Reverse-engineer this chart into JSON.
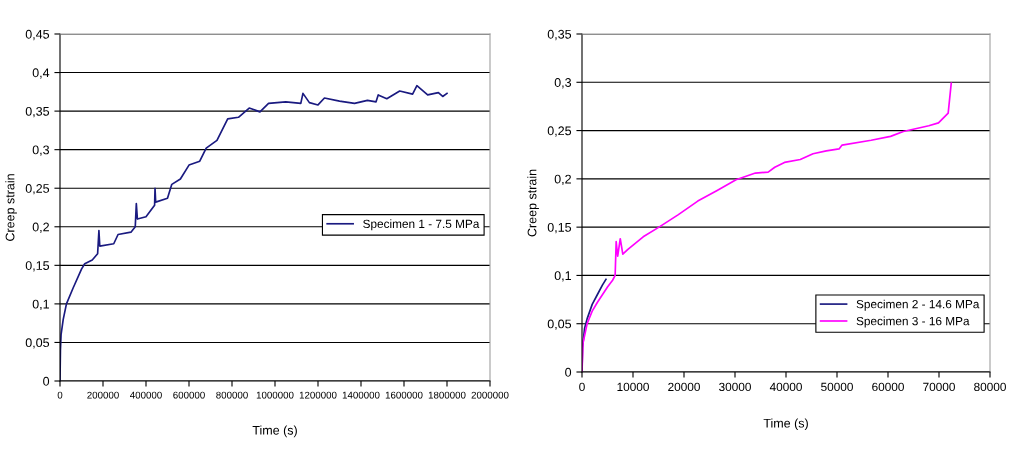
{
  "chart_data": [
    {
      "type": "line",
      "xlabel": "Time (s)",
      "ylabel": "Creep strain",
      "grid": "y",
      "legend": "right",
      "xlim": [
        0,
        2000000
      ],
      "xticks": [
        0,
        200000,
        400000,
        600000,
        800000,
        1000000,
        1200000,
        1400000,
        1600000,
        1800000,
        2000000
      ],
      "ylim": [
        0,
        0.45
      ],
      "yticks": [
        0,
        {
          "value": 0.05,
          "label": "0,05"
        },
        {
          "value": 0.1,
          "label": "0,1"
        },
        {
          "value": 0.15,
          "label": "0,15"
        },
        {
          "value": 0.2,
          "label": "0,2"
        },
        {
          "value": 0.25,
          "label": "0,25"
        },
        {
          "value": 0.3,
          "label": "0,3"
        },
        {
          "value": 0.35,
          "label": "0,35"
        },
        {
          "value": 0.4,
          "label": "0,4"
        },
        {
          "value": 0.45,
          "label": "0,45"
        }
      ],
      "series": [
        {
          "name": "Specimen 1 - 7.5 MPa",
          "color": "#1a1a80",
          "x": [
            0,
            2000,
            5000,
            15000,
            30000,
            60000,
            100000,
            115000,
            150000,
            175000,
            181000,
            185000,
            250000,
            270000,
            330000,
            350000,
            355000,
            360000,
            400000,
            440000,
            442000,
            445000,
            500000,
            520000,
            560000,
            600000,
            650000,
            680000,
            730000,
            780000,
            830000,
            880000,
            930000,
            970000,
            1050000,
            1120000,
            1130000,
            1160000,
            1200000,
            1230000,
            1300000,
            1370000,
            1430000,
            1470000,
            1480000,
            1520000,
            1580000,
            1640000,
            1660000,
            1710000,
            1760000,
            1780000,
            1800000
          ],
          "values": [
            0,
            0.04,
            0.06,
            0.08,
            0.1,
            0.12,
            0.145,
            0.152,
            0.157,
            0.165,
            0.195,
            0.175,
            0.178,
            0.19,
            0.193,
            0.2,
            0.23,
            0.21,
            0.213,
            0.228,
            0.25,
            0.232,
            0.237,
            0.255,
            0.262,
            0.28,
            0.285,
            0.302,
            0.312,
            0.34,
            0.342,
            0.354,
            0.349,
            0.36,
            0.362,
            0.36,
            0.373,
            0.361,
            0.358,
            0.367,
            0.363,
            0.36,
            0.364,
            0.362,
            0.371,
            0.366,
            0.376,
            0.372,
            0.383,
            0.371,
            0.374,
            0.369,
            0.373
          ]
        }
      ]
    },
    {
      "type": "line",
      "xlabel": "Time (s)",
      "ylabel": "Creep strain",
      "grid": "y",
      "legend": "bottom right",
      "xlim": [
        0,
        80000
      ],
      "xticks": [
        0,
        10000,
        20000,
        30000,
        40000,
        50000,
        60000,
        70000,
        80000
      ],
      "ylim": [
        0,
        0.35
      ],
      "yticks": [
        0,
        {
          "value": 0.05,
          "label": "0,05"
        },
        {
          "value": 0.1,
          "label": "0,1"
        },
        {
          "value": 0.15,
          "label": "0,15"
        },
        {
          "value": 0.2,
          "label": "0,2"
        },
        {
          "value": 0.25,
          "label": "0,25"
        },
        {
          "value": 0.3,
          "label": "0,3"
        },
        {
          "value": 0.35,
          "label": "0,35"
        }
      ],
      "series": [
        {
          "name": "Specimen 2 - 14.6 MPa",
          "color": "#1a1a80",
          "x": [
            0,
            100,
            500,
            1000,
            2000,
            3000,
            4000,
            4700
          ],
          "values": [
            0,
            0.025,
            0.045,
            0.055,
            0.07,
            0.08,
            0.09,
            0.096
          ]
        },
        {
          "name": "Specimen 3 - 16 MPa",
          "color": "#ff00ff",
          "x": [
            0,
            200,
            1000,
            2000,
            3000,
            4000,
            5000,
            6000,
            6500,
            6700,
            7000,
            7500,
            8000,
            9000,
            12000,
            15100,
            18900,
            22700,
            26500,
            30200,
            34000,
            36500,
            37800,
            39700,
            42800,
            45300,
            47900,
            50400,
            51000,
            56700,
            60500,
            63000,
            68000,
            69900,
            71800,
            72400
          ],
          "values": [
            0,
            0.03,
            0.05,
            0.063,
            0.072,
            0.08,
            0.088,
            0.095,
            0.1,
            0.135,
            0.12,
            0.138,
            0.122,
            0.127,
            0.14,
            0.15,
            0.163,
            0.177,
            0.188,
            0.199,
            0.206,
            0.207,
            0.212,
            0.217,
            0.22,
            0.226,
            0.229,
            0.231,
            0.235,
            0.24,
            0.244,
            0.249,
            0.255,
            0.258,
            0.268,
            0.299
          ]
        }
      ]
    }
  ]
}
